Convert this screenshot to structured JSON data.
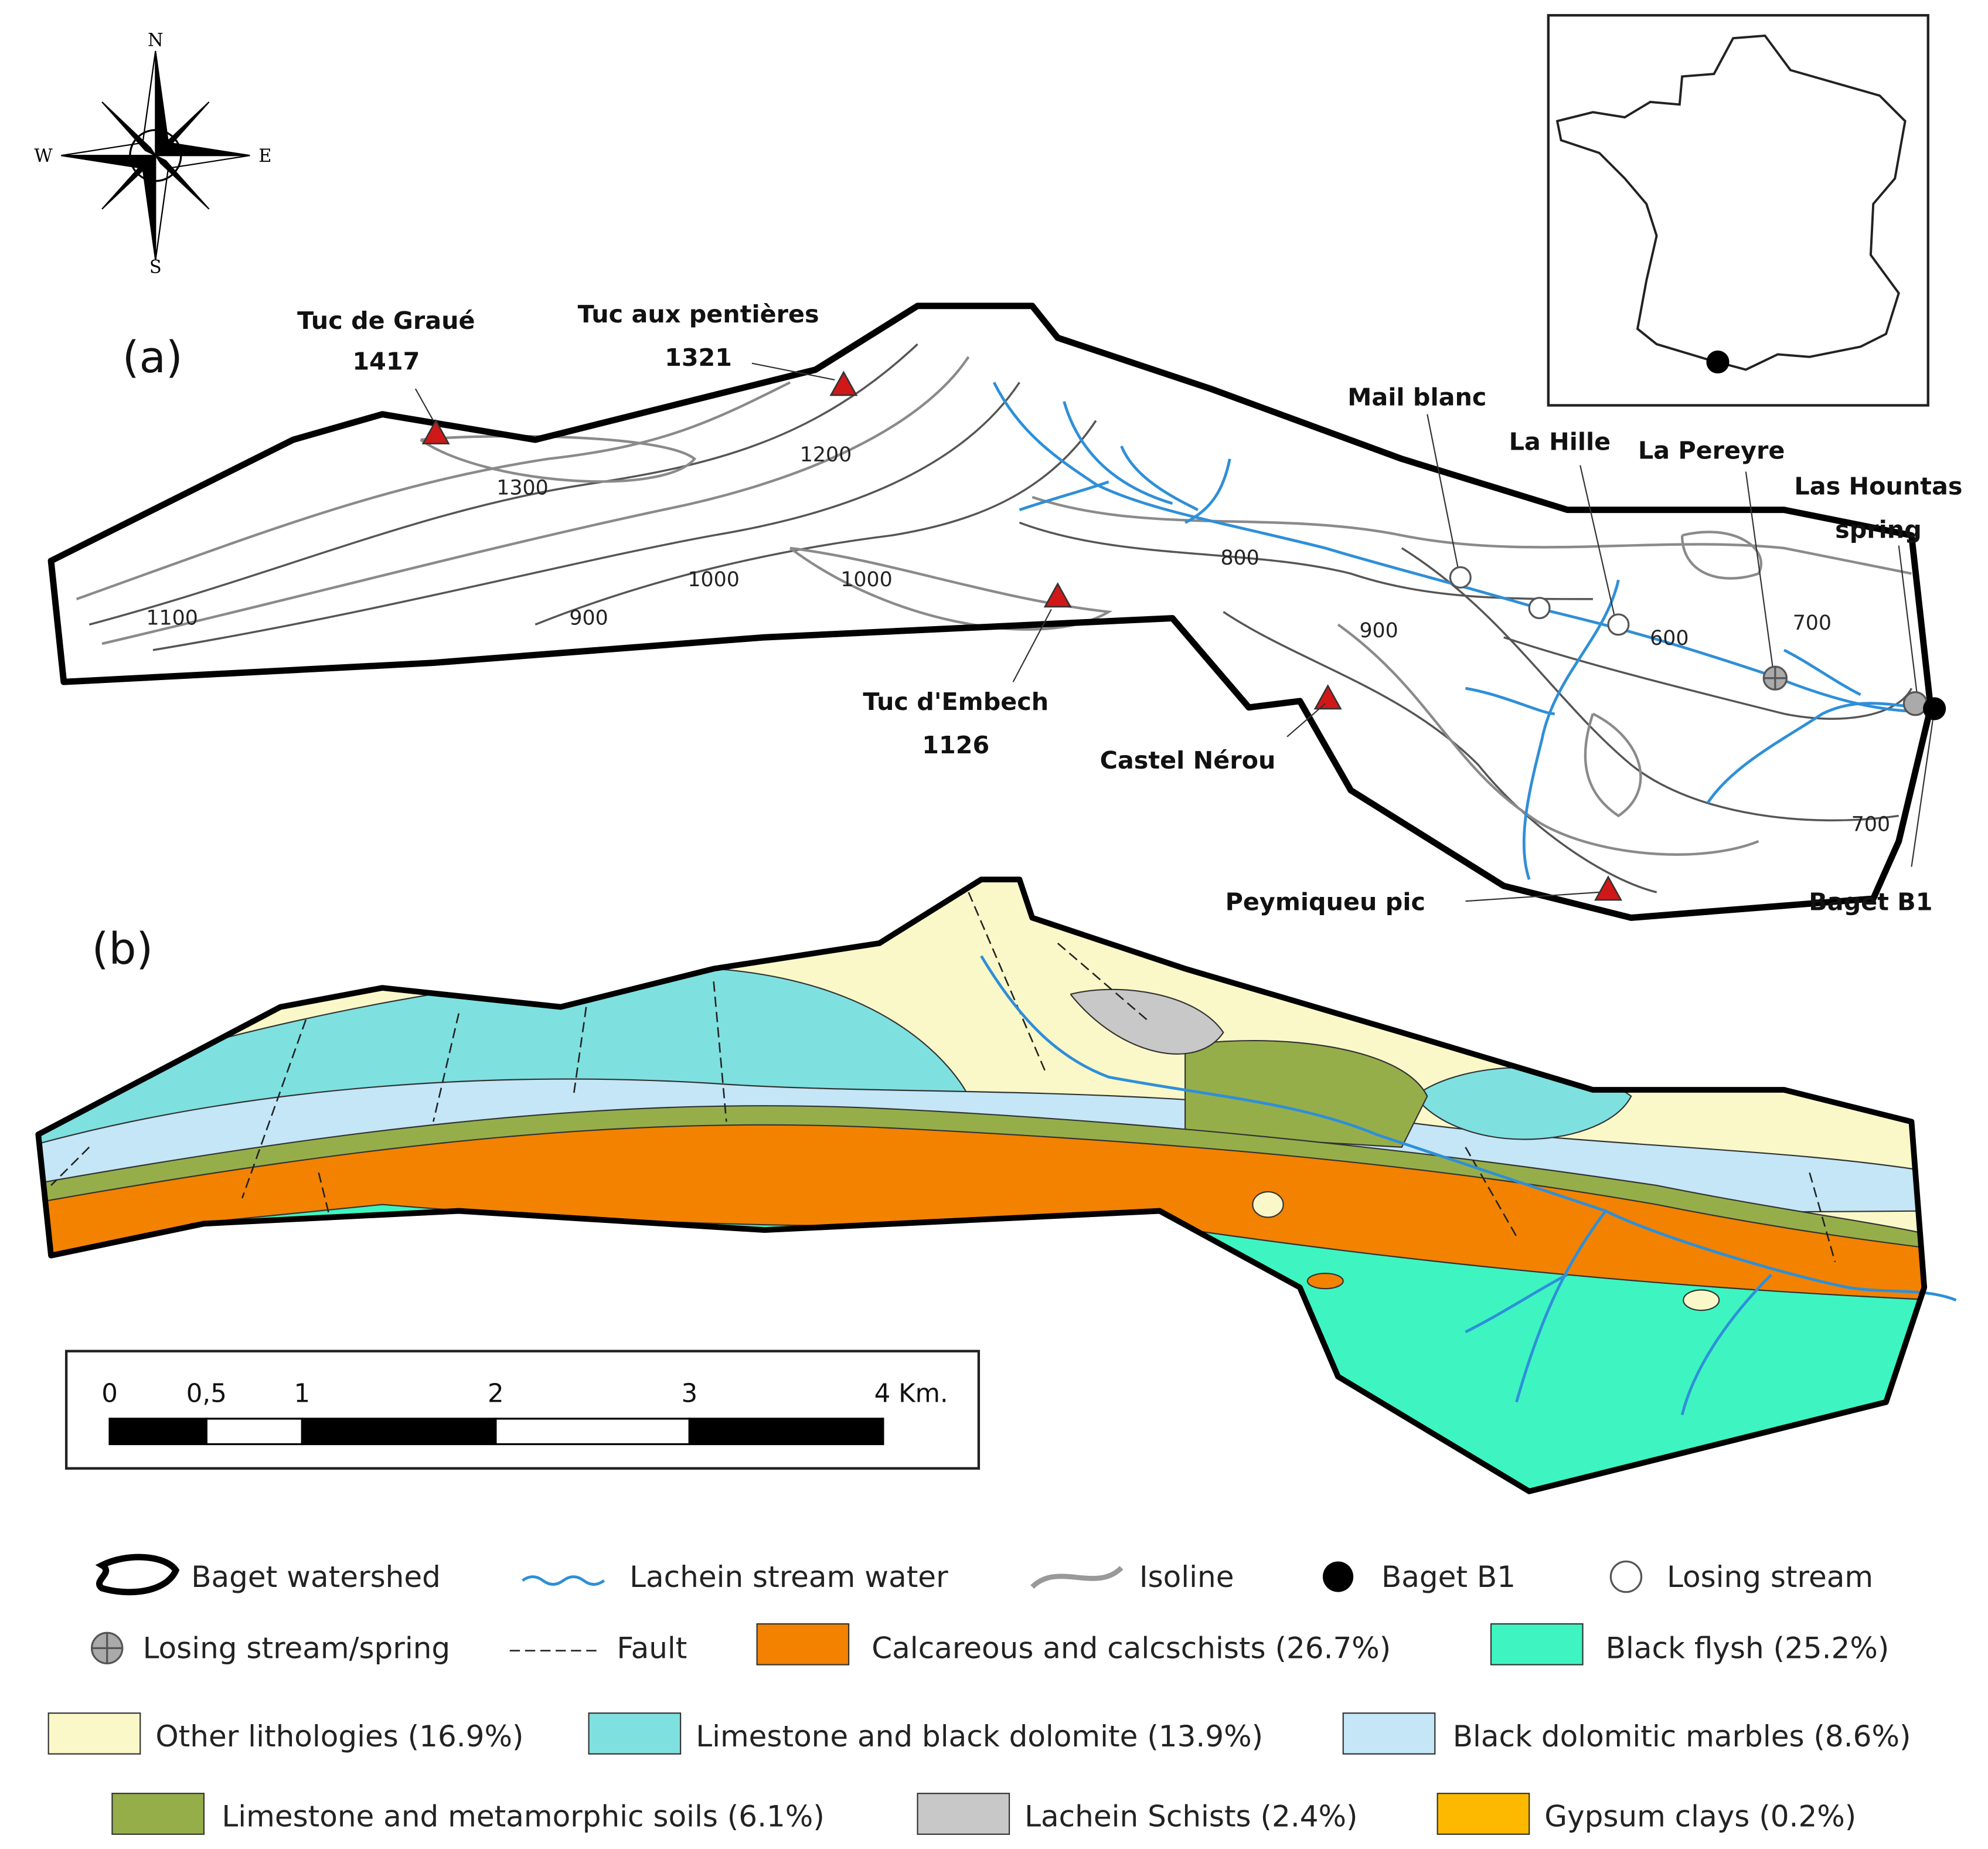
{
  "panel_labels": [
    "(a)",
    "(b)"
  ],
  "compass": {
    "north": "N",
    "south": "S",
    "east": "E",
    "west": "W"
  },
  "peaks": [
    {
      "name": "Tuc de Graué",
      "elevation": "1417"
    },
    {
      "name": "Tuc aux pentières",
      "elevation": "1321"
    },
    {
      "name": "Tuc d'Embech",
      "elevation": "1126"
    },
    {
      "name": "Castel Nérou"
    },
    {
      "name": "Peymiqueu pic"
    }
  ],
  "sites": [
    {
      "lines": [
        "Mail blanc"
      ]
    },
    {
      "lines": [
        "La Hille"
      ]
    },
    {
      "lines": [
        "La Pereyre"
      ]
    },
    {
      "lines": [
        "Las Hountas",
        "spring"
      ]
    },
    {
      "lines": [
        "Baget B1"
      ]
    }
  ],
  "contour_labels": [
    "1300",
    "1200",
    "1100",
    "1000",
    "1000",
    "900",
    "800",
    "900",
    "600",
    "700",
    "700"
  ],
  "scale_bar": {
    "labels": [
      "0",
      "0,5",
      "1",
      "2",
      "3",
      "4 Km."
    ]
  },
  "legend": [
    "Baget watershed",
    "Lachein stream water",
    "Isoline",
    "Baget B1",
    "Losing stream",
    "Losing stream/spring",
    "Fault",
    "Calcareous and calcschists (26.7%)",
    "Black flysh (25.2%)",
    "Other lithologies (16.9%)",
    "Limestone and black dolomite (13.9%)",
    "Black dolomitic marbles (8.6%)",
    "Limestone and metamorphic soils (6.1%)",
    "Lachein Schists (2.4%)",
    "Gypsum clays (0.2%)"
  ]
}
